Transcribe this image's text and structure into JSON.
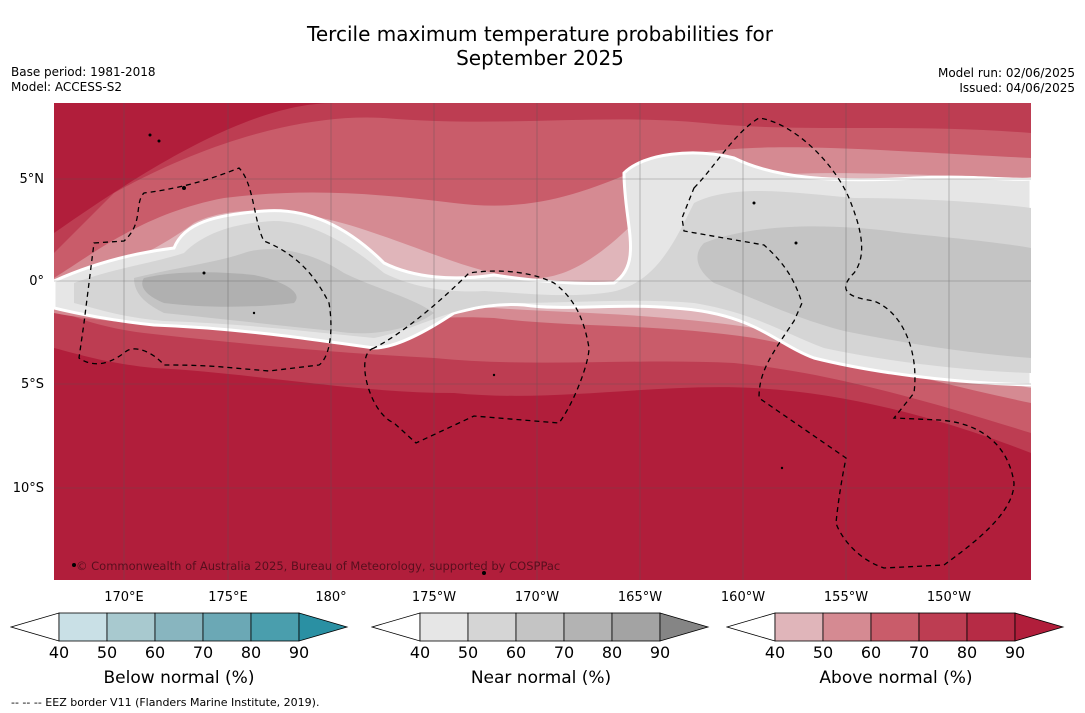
{
  "title": {
    "line1": "Tercile maximum temperature probabilities for",
    "line2": "September 2025"
  },
  "meta_left": {
    "base_period": "Base period: 1981-2018",
    "model": "Model: ACCESS-S2"
  },
  "meta_right": {
    "model_run": "Model run: 02/06/2025",
    "issued": "Issued: 04/06/2025"
  },
  "map": {
    "lat_labels": [
      "5°N",
      "0°",
      "5°S",
      "10°S"
    ],
    "lon_labels": [
      "170°E",
      "175°E",
      "180°",
      "175°W",
      "170°W",
      "165°W",
      "160°W",
      "155°W",
      "150°W"
    ],
    "copyright": "© Commonwealth of Australia 2025, Bureau of Meteorology, supported by COSPPac",
    "colors": {
      "above_90": "#b11e3b",
      "above_80": "#bd3d52",
      "above_70": "#c95c6a",
      "above_60": "#d58a92",
      "above_50": "#e0b5ba",
      "near_60": "#c4c4c4",
      "near_50": "#d5d5d5",
      "near_40": "#e6e6e6",
      "near_70": "#b0b0b0"
    }
  },
  "colorbars": [
    {
      "label": "Below normal (%)",
      "ticks": [
        "40",
        "50",
        "60",
        "70",
        "80",
        "90"
      ],
      "colors": [
        "#c9e0e6",
        "#a8c9cf",
        "#88b5bf",
        "#6ba8b5",
        "#4a9ead",
        "#2a90a3"
      ]
    },
    {
      "label": "Near normal (%)",
      "ticks": [
        "40",
        "50",
        "60",
        "70",
        "80",
        "90"
      ],
      "colors": [
        "#e6e6e6",
        "#d5d5d5",
        "#c4c4c4",
        "#b3b3b3",
        "#a3a3a3",
        "#858585"
      ]
    },
    {
      "label": "Above normal (%)",
      "ticks": [
        "40",
        "50",
        "60",
        "70",
        "80",
        "90"
      ],
      "colors": [
        "#e0b5ba",
        "#d58a92",
        "#c95c6a",
        "#bd3d52",
        "#b62b45",
        "#b11e3b"
      ]
    }
  ],
  "footer": "--  --  -- EEZ border V11 (Flanders Marine Institute, 2019)."
}
